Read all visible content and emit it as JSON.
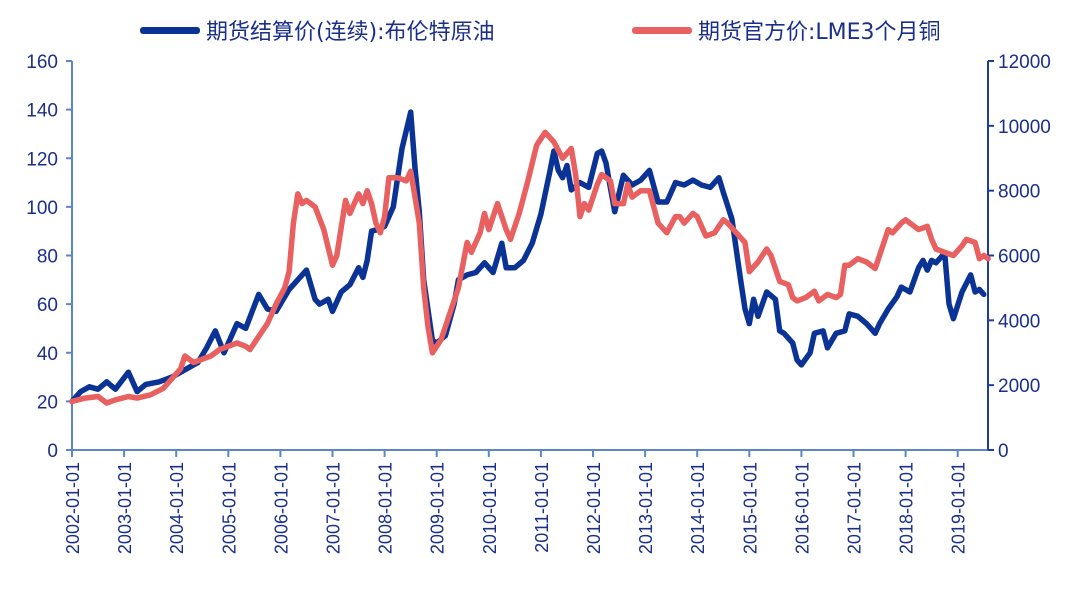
{
  "chart_data": {
    "type": "line",
    "title": "",
    "legend_position": "top",
    "grid": false,
    "x_ticks": [
      "2002-01-01",
      "2003-01-01",
      "2004-01-01",
      "2005-01-01",
      "2006-01-01",
      "2007-01-01",
      "2008-01-01",
      "2009-01-01",
      "2010-01-01",
      "2011-01-01",
      "2012-01-01",
      "2013-01-01",
      "2014-01-01",
      "2015-01-01",
      "2016-01-01",
      "2017-01-01",
      "2018-01-01",
      "2019-01-01"
    ],
    "y_left": {
      "range": [
        0,
        160
      ],
      "ticks": [
        "0",
        "20",
        "40",
        "60",
        "80",
        "100",
        "120",
        "140",
        "160"
      ],
      "color": "#1a2f8a"
    },
    "y_right": {
      "range": [
        0,
        12000
      ],
      "ticks": [
        "0",
        "2000",
        "4000",
        "6000",
        "8000",
        "10000",
        "12000"
      ],
      "color": "#1a2f8a"
    },
    "axis_color": "#5b87c9",
    "series": [
      {
        "name": "期货结算价(连续):布伦特原油",
        "axis": "left",
        "color": "#0a3395",
        "points": [
          [
            "2002-01",
            20
          ],
          [
            "2002-03",
            24
          ],
          [
            "2002-05",
            26
          ],
          [
            "2002-07",
            25
          ],
          [
            "2002-09",
            28
          ],
          [
            "2002-11",
            25
          ],
          [
            "2003-02",
            32
          ],
          [
            "2003-04",
            24
          ],
          [
            "2003-06",
            27
          ],
          [
            "2003-09",
            28
          ],
          [
            "2003-12",
            30
          ],
          [
            "2004-03",
            33
          ],
          [
            "2004-06",
            36
          ],
          [
            "2004-08",
            42
          ],
          [
            "2004-10",
            49
          ],
          [
            "2004-12",
            40
          ],
          [
            "2005-03",
            52
          ],
          [
            "2005-05",
            50
          ],
          [
            "2005-08",
            64
          ],
          [
            "2005-10",
            58
          ],
          [
            "2005-12",
            57
          ],
          [
            "2006-03",
            66
          ],
          [
            "2006-05",
            70
          ],
          [
            "2006-07",
            74
          ],
          [
            "2006-09",
            62
          ],
          [
            "2006-10",
            60
          ],
          [
            "2006-12",
            62
          ],
          [
            "2007-01",
            57
          ],
          [
            "2007-03",
            65
          ],
          [
            "2007-05",
            68
          ],
          [
            "2007-07",
            75
          ],
          [
            "2007-08",
            71
          ],
          [
            "2007-09",
            78
          ],
          [
            "2007-10",
            90
          ],
          [
            "2007-12",
            91
          ],
          [
            "2008-01",
            92
          ],
          [
            "2008-03",
            100
          ],
          [
            "2008-05",
            124
          ],
          [
            "2008-07",
            139
          ],
          [
            "2008-08",
            116
          ],
          [
            "2008-09",
            98
          ],
          [
            "2008-10",
            70
          ],
          [
            "2008-12",
            45
          ],
          [
            "2009-01",
            44
          ],
          [
            "2009-03",
            47
          ],
          [
            "2009-05",
            60
          ],
          [
            "2009-06",
            70
          ],
          [
            "2009-08",
            72
          ],
          [
            "2009-10",
            73
          ],
          [
            "2009-12",
            77
          ],
          [
            "2010-02",
            73
          ],
          [
            "2010-04",
            85
          ],
          [
            "2010-05",
            75
          ],
          [
            "2010-07",
            75
          ],
          [
            "2010-09",
            78
          ],
          [
            "2010-11",
            85
          ],
          [
            "2011-01",
            97
          ],
          [
            "2011-03",
            114
          ],
          [
            "2011-04",
            123
          ],
          [
            "2011-05",
            115
          ],
          [
            "2011-06",
            112
          ],
          [
            "2011-07",
            117
          ],
          [
            "2011-08",
            107
          ],
          [
            "2011-10",
            110
          ],
          [
            "2011-12",
            108
          ],
          [
            "2012-02",
            122
          ],
          [
            "2012-03",
            123
          ],
          [
            "2012-04",
            118
          ],
          [
            "2012-06",
            98
          ],
          [
            "2012-08",
            113
          ],
          [
            "2012-09",
            111
          ],
          [
            "2012-10",
            109
          ],
          [
            "2012-12",
            111
          ],
          [
            "2013-02",
            115
          ],
          [
            "2013-04",
            102
          ],
          [
            "2013-06",
            102
          ],
          [
            "2013-08",
            110
          ],
          [
            "2013-10",
            109
          ],
          [
            "2013-12",
            111
          ],
          [
            "2014-02",
            109
          ],
          [
            "2014-04",
            108
          ],
          [
            "2014-06",
            112
          ],
          [
            "2014-07",
            106
          ],
          [
            "2014-09",
            95
          ],
          [
            "2014-11",
            70
          ],
          [
            "2014-12",
            58
          ],
          [
            "2015-01",
            52
          ],
          [
            "2015-02",
            62
          ],
          [
            "2015-03",
            55
          ],
          [
            "2015-05",
            65
          ],
          [
            "2015-07",
            62
          ],
          [
            "2015-08",
            49
          ],
          [
            "2015-09",
            48
          ],
          [
            "2015-11",
            44
          ],
          [
            "2015-12",
            37
          ],
          [
            "2016-01",
            35
          ],
          [
            "2016-03",
            40
          ],
          [
            "2016-04",
            48
          ],
          [
            "2016-06",
            49
          ],
          [
            "2016-07",
            42
          ],
          [
            "2016-09",
            48
          ],
          [
            "2016-11",
            49
          ],
          [
            "2016-12",
            56
          ],
          [
            "2017-02",
            55
          ],
          [
            "2017-04",
            52
          ],
          [
            "2017-06",
            48
          ],
          [
            "2017-07",
            52
          ],
          [
            "2017-09",
            58
          ],
          [
            "2017-11",
            63
          ],
          [
            "2017-12",
            67
          ],
          [
            "2018-02",
            65
          ],
          [
            "2018-04",
            75
          ],
          [
            "2018-05",
            78
          ],
          [
            "2018-06",
            74
          ],
          [
            "2018-07",
            78
          ],
          [
            "2018-08",
            77
          ],
          [
            "2018-10",
            81
          ],
          [
            "2018-11",
            60
          ],
          [
            "2018-12",
            54
          ],
          [
            "2019-02",
            65
          ],
          [
            "2019-04",
            72
          ],
          [
            "2019-05",
            65
          ],
          [
            "2019-06",
            66
          ],
          [
            "2019-07",
            64
          ]
        ]
      },
      {
        "name": "期货官方价:LME3个月铜",
        "axis": "right",
        "color": "#e8605f",
        "points": [
          [
            "2002-01",
            1500
          ],
          [
            "2002-04",
            1600
          ],
          [
            "2002-07",
            1650
          ],
          [
            "2002-09",
            1450
          ],
          [
            "2002-11",
            1550
          ],
          [
            "2003-02",
            1650
          ],
          [
            "2003-04",
            1600
          ],
          [
            "2003-07",
            1700
          ],
          [
            "2003-10",
            1900
          ],
          [
            "2003-12",
            2200
          ],
          [
            "2004-02",
            2500
          ],
          [
            "2004-03",
            2900
          ],
          [
            "2004-05",
            2700
          ],
          [
            "2004-07",
            2800
          ],
          [
            "2004-09",
            2900
          ],
          [
            "2004-11",
            3100
          ],
          [
            "2005-01",
            3200
          ],
          [
            "2005-03",
            3300
          ],
          [
            "2005-05",
            3200
          ],
          [
            "2005-06",
            3100
          ],
          [
            "2005-08",
            3500
          ],
          [
            "2005-10",
            3900
          ],
          [
            "2005-12",
            4500
          ],
          [
            "2006-02",
            5000
          ],
          [
            "2006-03",
            5500
          ],
          [
            "2006-04",
            7000
          ],
          [
            "2006-05",
            7900
          ],
          [
            "2006-06",
            7600
          ],
          [
            "2006-07",
            7700
          ],
          [
            "2006-09",
            7500
          ],
          [
            "2006-11",
            6800
          ],
          [
            "2007-01",
            5700
          ],
          [
            "2007-02",
            6000
          ],
          [
            "2007-04",
            7700
          ],
          [
            "2007-05",
            7300
          ],
          [
            "2007-07",
            7900
          ],
          [
            "2007-08",
            7600
          ],
          [
            "2007-09",
            8000
          ],
          [
            "2007-10",
            7600
          ],
          [
            "2007-11",
            7000
          ],
          [
            "2007-12",
            6700
          ],
          [
            "2008-01",
            7200
          ],
          [
            "2008-02",
            8400
          ],
          [
            "2008-04",
            8400
          ],
          [
            "2008-06",
            8300
          ],
          [
            "2008-07",
            8600
          ],
          [
            "2008-08",
            7800
          ],
          [
            "2008-09",
            7000
          ],
          [
            "2008-10",
            5000
          ],
          [
            "2008-11",
            3800
          ],
          [
            "2008-12",
            3000
          ],
          [
            "2009-02",
            3400
          ],
          [
            "2009-04",
            4200
          ],
          [
            "2009-06",
            5000
          ],
          [
            "2009-08",
            6400
          ],
          [
            "2009-09",
            6100
          ],
          [
            "2009-11",
            6700
          ],
          [
            "2009-12",
            7300
          ],
          [
            "2010-01",
            6800
          ],
          [
            "2010-03",
            7600
          ],
          [
            "2010-05",
            6800
          ],
          [
            "2010-06",
            6500
          ],
          [
            "2010-08",
            7300
          ],
          [
            "2010-10",
            8300
          ],
          [
            "2010-12",
            9400
          ],
          [
            "2011-02",
            9800
          ],
          [
            "2011-04",
            9500
          ],
          [
            "2011-06",
            9000
          ],
          [
            "2011-08",
            9300
          ],
          [
            "2011-09",
            8500
          ],
          [
            "2011-10",
            7200
          ],
          [
            "2011-11",
            7600
          ],
          [
            "2011-12",
            7400
          ],
          [
            "2012-02",
            8200
          ],
          [
            "2012-03",
            8500
          ],
          [
            "2012-05",
            8300
          ],
          [
            "2012-06",
            7600
          ],
          [
            "2012-08",
            7600
          ],
          [
            "2012-09",
            8200
          ],
          [
            "2012-10",
            7800
          ],
          [
            "2012-12",
            8000
          ],
          [
            "2013-02",
            8000
          ],
          [
            "2013-04",
            7000
          ],
          [
            "2013-06",
            6700
          ],
          [
            "2013-08",
            7200
          ],
          [
            "2013-09",
            7200
          ],
          [
            "2013-10",
            7000
          ],
          [
            "2013-12",
            7300
          ],
          [
            "2014-01",
            7200
          ],
          [
            "2014-03",
            6600
          ],
          [
            "2014-05",
            6700
          ],
          [
            "2014-07",
            7100
          ],
          [
            "2014-08",
            7000
          ],
          [
            "2014-10",
            6700
          ],
          [
            "2014-12",
            6400
          ],
          [
            "2015-01",
            5500
          ],
          [
            "2015-03",
            5800
          ],
          [
            "2015-05",
            6200
          ],
          [
            "2015-06",
            6000
          ],
          [
            "2015-08",
            5200
          ],
          [
            "2015-10",
            5100
          ],
          [
            "2015-11",
            4700
          ],
          [
            "2015-12",
            4600
          ],
          [
            "2016-02",
            4700
          ],
          [
            "2016-04",
            4900
          ],
          [
            "2016-05",
            4600
          ],
          [
            "2016-07",
            4800
          ],
          [
            "2016-09",
            4700
          ],
          [
            "2016-10",
            4800
          ],
          [
            "2016-11",
            5700
          ],
          [
            "2016-12",
            5700
          ],
          [
            "2017-02",
            5900
          ],
          [
            "2017-04",
            5800
          ],
          [
            "2017-06",
            5600
          ],
          [
            "2017-08",
            6400
          ],
          [
            "2017-09",
            6800
          ],
          [
            "2017-10",
            6700
          ],
          [
            "2017-12",
            7000
          ],
          [
            "2018-01",
            7100
          ],
          [
            "2018-02",
            7000
          ],
          [
            "2018-04",
            6800
          ],
          [
            "2018-06",
            6900
          ],
          [
            "2018-07",
            6500
          ],
          [
            "2018-08",
            6200
          ],
          [
            "2018-10",
            6100
          ],
          [
            "2018-12",
            6000
          ],
          [
            "2019-02",
            6300
          ],
          [
            "2019-03",
            6500
          ],
          [
            "2019-05",
            6400
          ],
          [
            "2019-06",
            5900
          ],
          [
            "2019-07",
            6000
          ],
          [
            "2019-08",
            5900
          ]
        ]
      }
    ]
  }
}
